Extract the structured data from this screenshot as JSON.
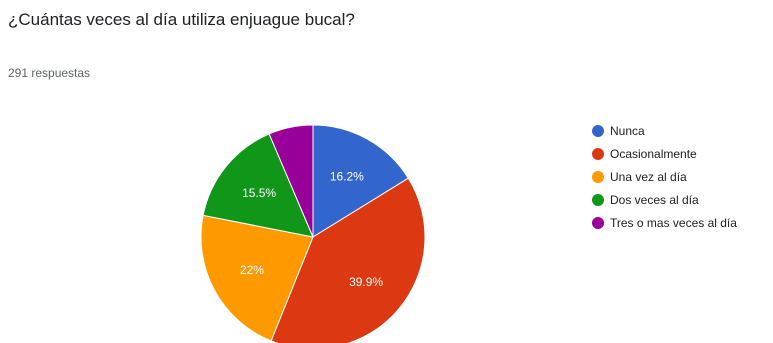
{
  "question": {
    "title": "¿Cuántas veces al día utiliza enjuague bucal?",
    "responses": "291 respuestas"
  },
  "chart_data": {
    "type": "pie",
    "title": "",
    "total_responses": 291,
    "start_angle_deg": 90,
    "direction": "clockwise",
    "legend_position": "right",
    "slices": [
      {
        "label": "Nunca",
        "value": 16.2,
        "value_label": "16.2%",
        "color": "#3366cc"
      },
      {
        "label": "Ocasionalmente",
        "value": 39.9,
        "value_label": "39.9%",
        "color": "#dc3912"
      },
      {
        "label": "Una vez al día",
        "value": 22.0,
        "value_label": "22%",
        "color": "#ff9900"
      },
      {
        "label": "Dos veces al día",
        "value": 15.5,
        "value_label": "15.5%",
        "color": "#109618"
      },
      {
        "label": "Tres o mas veces al día",
        "value": 6.4,
        "value_label": "",
        "color": "#990099"
      }
    ]
  }
}
